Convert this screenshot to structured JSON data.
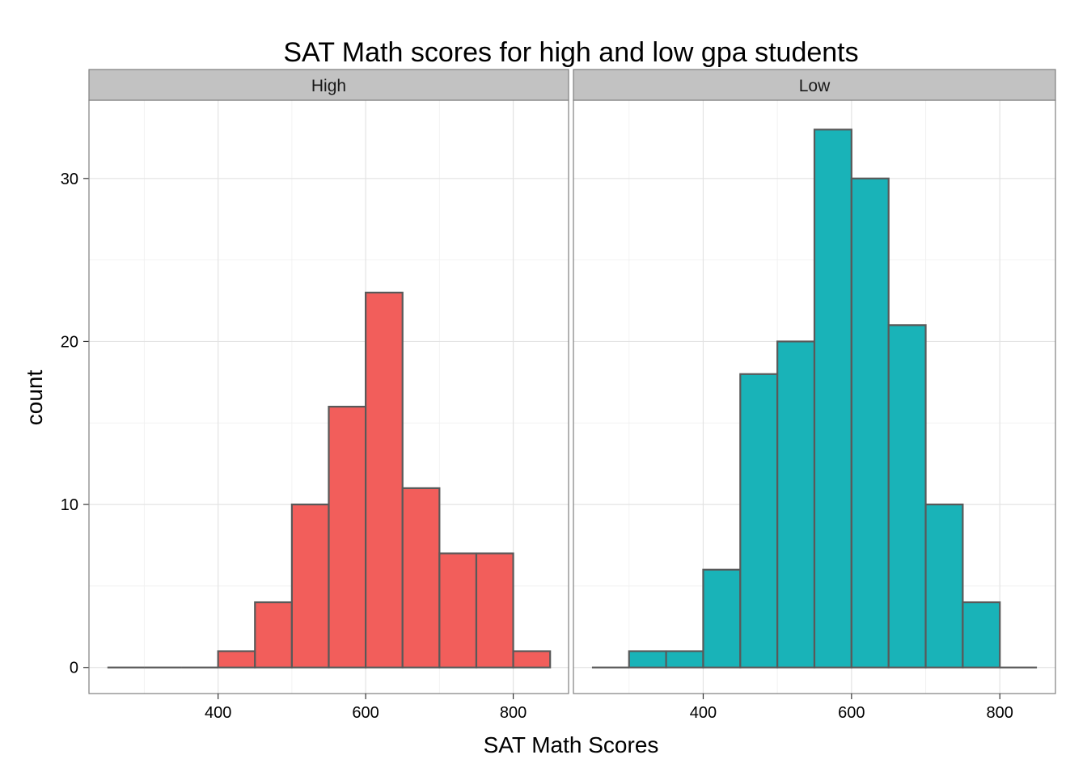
{
  "chart_data": {
    "type": "bar",
    "title": "SAT Math scores for high and low gpa students",
    "xlabel": "SAT Math Scores",
    "ylabel": "count",
    "xlim": [
      225,
      875
    ],
    "ylim": [
      -1.6,
      34.8
    ],
    "x_ticks": [
      400,
      600,
      800
    ],
    "y_ticks": [
      0,
      10,
      20,
      30
    ],
    "bin_width": 50,
    "bin_starts": [
      250,
      300,
      350,
      400,
      450,
      500,
      550,
      600,
      650,
      700,
      750,
      800
    ],
    "grid": true,
    "bar_outline_color": "#595959",
    "panels": [
      {
        "name": "High",
        "fill": "#F25E5B",
        "values": [
          0,
          0,
          0,
          1,
          4,
          10,
          16,
          23,
          11,
          7,
          7,
          1
        ]
      },
      {
        "name": "Low",
        "fill": "#19B3B8",
        "values": [
          0,
          1,
          1,
          6,
          18,
          20,
          33,
          30,
          21,
          10,
          4,
          0
        ]
      }
    ]
  }
}
